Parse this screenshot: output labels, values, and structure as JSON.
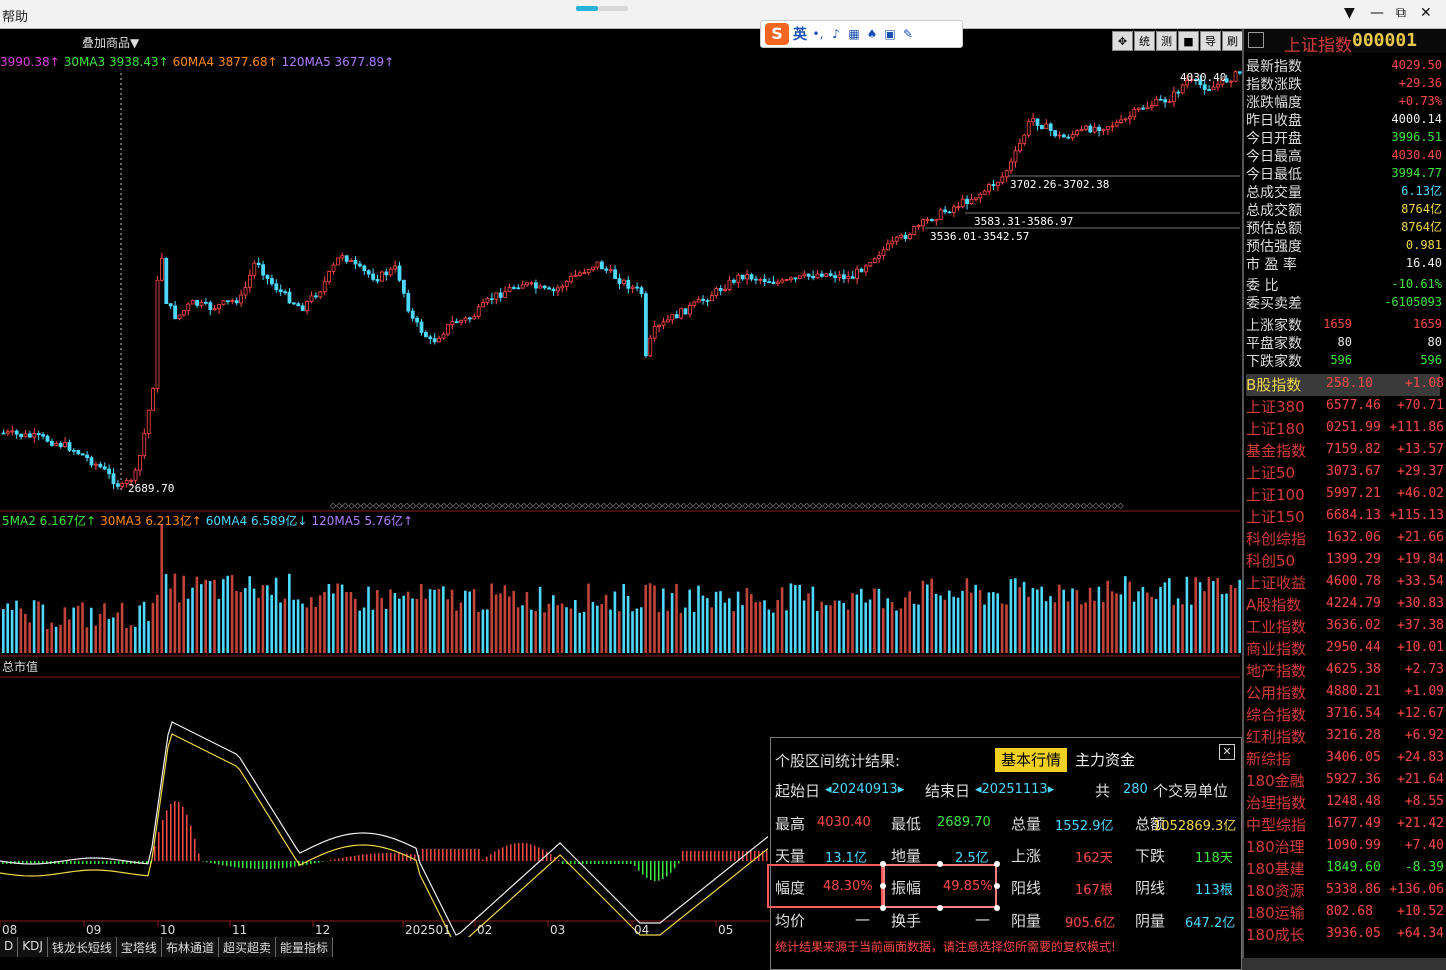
{
  "menu": {
    "help": "帮助",
    "min": "▼",
    "minimize": "—",
    "restore": "⧉",
    "close": "✕"
  },
  "ime": {
    "logo": "S",
    "lang": "英"
  },
  "toolbar": {
    "overlay_label": "叠加商品▼",
    "tools": [
      "✥",
      "统",
      "测",
      "■",
      "导",
      "刷"
    ]
  },
  "price_legend": [
    {
      "text": "3990.38↑",
      "color": "#e040e0"
    },
    {
      "text": "30MA3 3938.43↑",
      "color": "#3fe63f"
    },
    {
      "text": "60MA4 3877.68↑",
      "color": "#ff8c1a"
    },
    {
      "text": "120MA5 3677.89↑",
      "color": "#b080ff"
    }
  ],
  "vol_legend": [
    {
      "text": "5MA2 6.167亿↑",
      "color": "#3fe63f"
    },
    {
      "text": "30MA3 6.213亿↑",
      "color": "#ff8c1a"
    },
    {
      "text": "60MA4 6.589亿↓",
      "color": "#4fd8ff"
    },
    {
      "text": "120MA5 5.76亿↑",
      "color": "#b080ff"
    }
  ],
  "indicator_label": "总市值",
  "price_annotations": {
    "high": "4030.40",
    "low": "2689.70",
    "gap1": "3702.26-3702.38",
    "gap2": "3583.31-3586.97",
    "gap3": "3536.01-3542.57"
  },
  "x_axis": [
    "08",
    "09",
    "10",
    "11",
    "12",
    "202501",
    "02",
    "03",
    "04",
    "05"
  ],
  "bottom_tabs": [
    "D",
    "KDJ",
    "钱龙长短线",
    "宝塔线",
    "布林通道",
    "超买超卖",
    "能量指标"
  ],
  "panel": {
    "name": "上证指数",
    "code": "000001",
    "quote": [
      {
        "k": "最新指数",
        "v": "4029.50",
        "c": "red"
      },
      {
        "k": "指数涨跌",
        "v": "+29.36",
        "c": "red"
      },
      {
        "k": "涨跌幅度",
        "v": "+0.73%",
        "c": "red"
      },
      {
        "k": "昨日收盘",
        "v": "4000.14",
        "c": "white"
      },
      {
        "k": "今日开盘",
        "v": "3996.51",
        "c": "green"
      },
      {
        "k": "今日最高",
        "v": "4030.40",
        "c": "red"
      },
      {
        "k": "今日最低",
        "v": "3994.77",
        "c": "green"
      },
      {
        "k": "总成交量",
        "v": "6.13亿",
        "c": "cyan"
      },
      {
        "k": "总成交额",
        "v": "8764亿",
        "c": "yellow"
      },
      {
        "k": "预估总额",
        "v": "8764亿",
        "c": "yellow"
      },
      {
        "k": "预估强度",
        "v": "0.981",
        "c": "yellow"
      },
      {
        "k": "市 盈 率",
        "v": "16.40",
        "c": "white"
      }
    ],
    "order": [
      {
        "k": "委    比",
        "v": "-10.61%",
        "c": "green"
      },
      {
        "k": "委买卖差",
        "v": "-6105093",
        "c": "green"
      }
    ],
    "breadth": [
      {
        "k": "上涨家数",
        "a": "1659",
        "b": "1659",
        "c": "red"
      },
      {
        "k": "平盘家数",
        "a": "80",
        "b": "80",
        "c": "white"
      },
      {
        "k": "下跌家数",
        "a": "596",
        "b": "596",
        "c": "green"
      }
    ],
    "indices": [
      {
        "n": "B股指数",
        "p": "258.10",
        "c": "+1.08"
      },
      {
        "n": "上证380",
        "p": "6577.46",
        "c": "+70.71"
      },
      {
        "n": "上证180",
        "p": "0251.99",
        "c": "+111.86"
      },
      {
        "n": "基金指数",
        "p": "7159.82",
        "c": "+13.57"
      },
      {
        "n": "上证50",
        "p": "3073.67",
        "c": "+29.37"
      },
      {
        "n": "上证100",
        "p": "5997.21",
        "c": "+46.02"
      },
      {
        "n": "上证150",
        "p": "6684.13",
        "c": "+115.13"
      },
      {
        "n": "科创综指",
        "p": "1632.06",
        "c": "+21.66"
      },
      {
        "n": "科创50",
        "p": "1399.29",
        "c": "+19.84"
      },
      {
        "n": "上证收益",
        "p": "4600.78",
        "c": "+33.54"
      },
      {
        "n": "A股指数",
        "p": "4224.79",
        "c": "+30.83"
      },
      {
        "n": "工业指数",
        "p": "3636.02",
        "c": "+37.38"
      },
      {
        "n": "商业指数",
        "p": "2950.44",
        "c": "+10.01"
      },
      {
        "n": "地产指数",
        "p": "4625.38",
        "c": "+2.73"
      },
      {
        "n": "公用指数",
        "p": "4880.21",
        "c": "+1.09"
      },
      {
        "n": "综合指数",
        "p": "3716.54",
        "c": "+12.67"
      },
      {
        "n": "红利指数",
        "p": "3216.28",
        "c": "+6.92"
      },
      {
        "n": "新综指",
        "p": "3406.05",
        "c": "+24.83"
      },
      {
        "n": "180金融",
        "p": "5927.36",
        "c": "+21.64"
      },
      {
        "n": "治理指数",
        "p": "1248.48",
        "c": "+8.55"
      },
      {
        "n": "中型综指",
        "p": "1677.49",
        "c": "+21.42"
      },
      {
        "n": "180治理",
        "p": "1090.99",
        "c": "+7.40"
      },
      {
        "n": "180基建",
        "p": "1849.60",
        "c": "-8.39"
      },
      {
        "n": "180资源",
        "p": "5338.86",
        "c": "+136.06"
      },
      {
        "n": "180运输",
        "p": "802.68",
        "c": "+10.52"
      },
      {
        "n": "180成长",
        "p": "3936.05",
        "c": "+64.34"
      }
    ]
  },
  "stats": {
    "title": "个股区间统计结果:",
    "tab_basic": "基本行情",
    "tab_capital": "主力资金",
    "start_label": "起始日",
    "start_value": "◂20240913▸",
    "end_label": "结束日",
    "end_value": "◂20251113▸",
    "total_label": "共",
    "total_value": "280",
    "unit_label": "个交易单位",
    "high_label": "最高",
    "high_value": "4030.40",
    "low_label": "最低",
    "low_value": "2689.70",
    "vol_label": "总量",
    "vol_value": "1552.9亿",
    "amt_label": "总额",
    "amt_value": "1052869.3亿",
    "topvol_label": "天量",
    "topvol_value": "13.1亿",
    "botvol_label": "地量",
    "botvol_value": "2.5亿",
    "up_label": "上涨",
    "up_value": "162天",
    "down_label": "下跌",
    "down_value": "118天",
    "range_label": "幅度",
    "range_value": "48.30%",
    "amp_label": "振幅",
    "amp_value": "49.85%",
    "yang_label": "阳线",
    "yang_value": "167根",
    "yin_label": "阴线",
    "yin_value": "113根",
    "avg_label": "均价",
    "avg_value": "—",
    "turn_label": "换手",
    "turn_value": "—",
    "yangvol_label": "阳量",
    "yangvol_value": "905.6亿",
    "yinvol_label": "阴量",
    "yinvol_value": "647.2亿",
    "note": "统计结果来源于当前画面数据，请注意选择您所需要的复权模式!"
  },
  "colors": {
    "up": "#ff4a4a",
    "down": "#4fd8ff",
    "bg": "#000000",
    "accent": "#f0d020"
  }
}
